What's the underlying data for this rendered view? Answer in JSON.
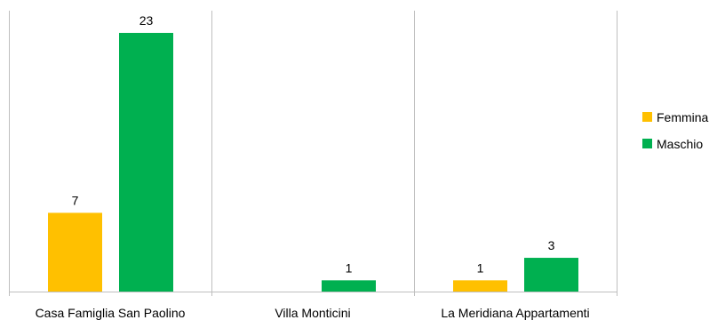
{
  "chart_data": {
    "type": "bar",
    "categories": [
      "Casa Famiglia San Paolino",
      "Villa Monticini",
      "La Meridiana Appartamenti"
    ],
    "series": [
      {
        "name": "Femmina",
        "values": [
          7,
          null,
          1
        ],
        "color": "#ffc000"
      },
      {
        "name": "Maschio",
        "values": [
          23,
          1,
          3
        ],
        "color": "#00b050"
      }
    ],
    "ylim": [
      0,
      23
    ],
    "grid": false,
    "legend_position": "right"
  }
}
